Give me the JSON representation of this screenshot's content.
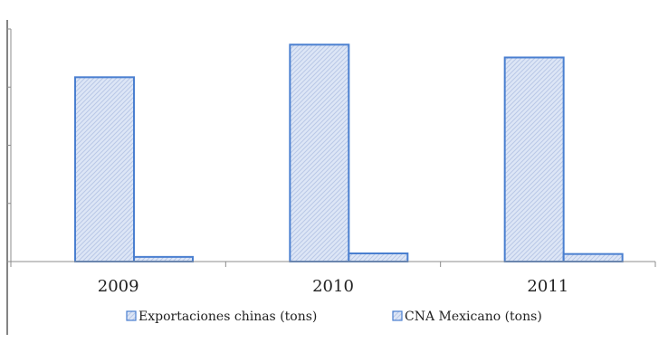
{
  "chart_data": {
    "type": "bar",
    "categories": [
      "2009",
      "2010",
      "2011"
    ],
    "series": [
      {
        "name": "Exportaciones chinas (tons)",
        "values": [
          3.17,
          3.73,
          3.51
        ]
      },
      {
        "name": "CNA Mexicano (tons)",
        "values": [
          0.08,
          0.14,
          0.13
        ]
      }
    ],
    "ylim": [
      0,
      4
    ],
    "yticks": [
      0,
      1,
      2,
      3,
      4
    ],
    "y_tick_labels_shown": false,
    "grid": false,
    "legend_position": "bottom",
    "colors": {
      "series_fill": "#dde6f6",
      "series_stroke": "#4a7fd0",
      "hatch": "#b9c8e6",
      "axis": "#8c8c8c",
      "frame": "#333333"
    }
  }
}
